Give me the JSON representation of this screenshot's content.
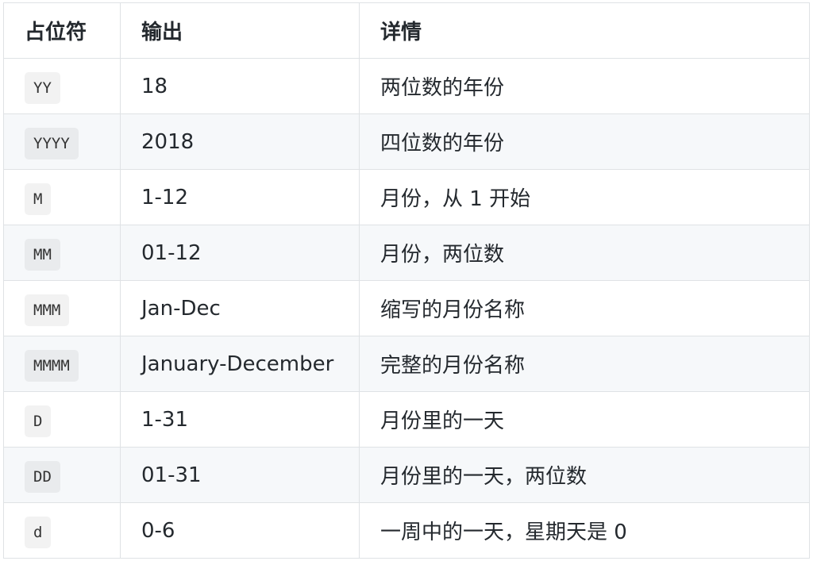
{
  "headers": [
    "占位符",
    "输出",
    "详情"
  ],
  "rows": [
    {
      "token": "YY",
      "output": "18",
      "detail": "两位数的年份"
    },
    {
      "token": "YYYY",
      "output": "2018",
      "detail": "四位数的年份"
    },
    {
      "token": "M",
      "output": "1-12",
      "detail": "月份，从 1 开始"
    },
    {
      "token": "MM",
      "output": "01-12",
      "detail": "月份，两位数"
    },
    {
      "token": "MMM",
      "output": "Jan-Dec",
      "detail": "缩写的月份名称"
    },
    {
      "token": "MMMM",
      "output": "January-December",
      "detail": "完整的月份名称"
    },
    {
      "token": "D",
      "output": "1-31",
      "detail": "月份里的一天"
    },
    {
      "token": "DD",
      "output": "01-31",
      "detail": "月份里的一天，两位数"
    },
    {
      "token": "d",
      "output": "0-6",
      "detail": "一周中的一天，星期天是 0"
    }
  ]
}
